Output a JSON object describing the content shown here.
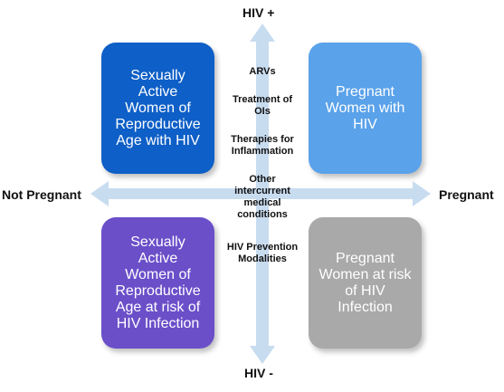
{
  "axes": {
    "top": "HIV +",
    "bottom": "HIV -",
    "left": "Not Pregnant",
    "right": "Pregnant",
    "arrow_color": "#c8dcf0"
  },
  "quadrants": {
    "top_left": {
      "text": "Sexually\nActive\nWomen of\nReproductive\nAge with HIV",
      "color": "#0e5fc7"
    },
    "top_right": {
      "text": "Pregnant\nWomen with\nHIV",
      "color": "#5aa2ea"
    },
    "bottom_left": {
      "text": "Sexually\nActive\nWomen of\nReproductive\nAge at risk of\nHIV Infection",
      "color": "#6a4fc9"
    },
    "bottom_right": {
      "text": "Pregnant\nWomen at risk\nof HIV\nInfection",
      "color": "#a9a9a9"
    }
  },
  "notes_top": [
    "ARVs",
    "Treatment of\nOIs",
    "Therapies for\nInflammation",
    "Other\nintercurrent\nmedical\nconditions"
  ],
  "notes_bottom": [
    "HIV Prevention\nModalities"
  ]
}
